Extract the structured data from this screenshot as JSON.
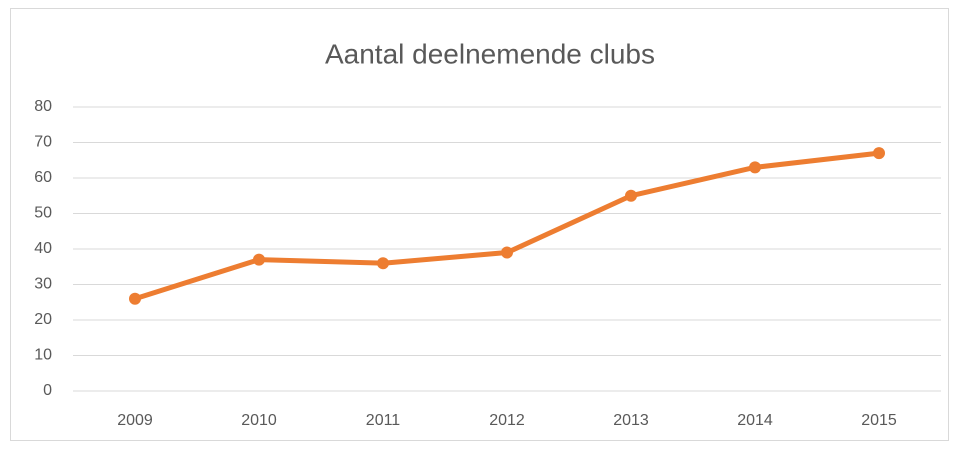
{
  "chart_data": {
    "type": "line",
    "title": "Aantal deelnemende clubs",
    "categories": [
      "2009",
      "2010",
      "2011",
      "2012",
      "2013",
      "2014",
      "2015"
    ],
    "values": [
      26,
      37,
      36,
      39,
      55,
      63,
      67
    ],
    "color": "#ed7d31",
    "ylim": [
      0,
      80
    ],
    "yticks": [
      0,
      10,
      20,
      30,
      40,
      50,
      60,
      70,
      80
    ],
    "grid": true
  }
}
